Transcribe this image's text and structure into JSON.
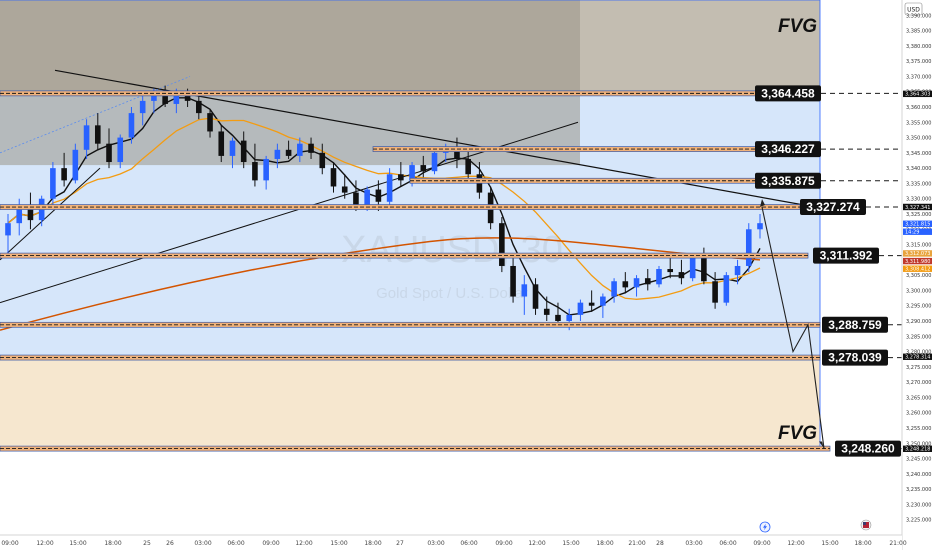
{
  "header": {
    "currency": "USD"
  },
  "watermark": {
    "symbol": "XAUUSD, 30",
    "description": "Gold Spot / U.S. Dollar"
  },
  "annotations": {
    "fvg_top": "FVG",
    "fvg_bottom": "FVG"
  },
  "chart_data": {
    "type": "candlestick",
    "title": "",
    "symbol": "XAUUSD",
    "timeframe": "30",
    "currency": "USD",
    "ylim": [
      3220,
      3395
    ],
    "y_ticks": [
      "3,390.000",
      "3,385.000",
      "3,380.000",
      "3,375.000",
      "3,370.000",
      "3,365.000",
      "3,360.000",
      "3,355.000",
      "3,350.000",
      "3,345.000",
      "3,340.000",
      "3,335.000",
      "3,330.000",
      "3,325.000",
      "3,320.000",
      "3,315.000",
      "3,310.000",
      "3,305.000",
      "3,300.000",
      "3,295.000",
      "3,290.000",
      "3,285.000",
      "3,280.000",
      "3,275.000",
      "3,270.000",
      "3,265.000",
      "3,260.000",
      "3,255.000",
      "3,250.000",
      "3,245.000",
      "3,240.000",
      "3,235.000",
      "3,230.000",
      "3,225.000"
    ],
    "x_ticks": [
      "09:00",
      "12:00",
      "15:00",
      "18:00",
      "25",
      "26",
      "03:00",
      "06:00",
      "09:00",
      "12:00",
      "15:00",
      "18:00",
      "27",
      "03:00",
      "06:00",
      "09:00",
      "12:00",
      "15:00",
      "18:00",
      "21:00",
      "28",
      "03:00",
      "06:00",
      "09:00",
      "12:00",
      "15:00",
      "18:00",
      "21:00"
    ],
    "levels": [
      {
        "label": "3,364.458",
        "value": 3364.458
      },
      {
        "label": "3,346.227",
        "value": 3346.227
      },
      {
        "label": "3,335.875",
        "value": 3335.875
      },
      {
        "label": "3,327.274",
        "value": 3327.274
      },
      {
        "label": "3,311.392",
        "value": 3311.392
      },
      {
        "label": "3,288.759",
        "value": 3288.759
      },
      {
        "label": "3,278.039",
        "value": 3278.039
      },
      {
        "label": "3,248.260",
        "value": 3248.26
      }
    ],
    "price_tags": [
      {
        "label": "3,364.303",
        "value": 3364.3,
        "color": "#111111"
      },
      {
        "label": "3,327.341",
        "value": 3327.3,
        "color": "#111111"
      },
      {
        "label": "3,321.815",
        "value": 3321.8,
        "color": "#2962ff"
      },
      {
        "label": "14:29",
        "value": 3319.2,
        "color": "#2962ff"
      },
      {
        "label": "3,312.073",
        "value": 3312.1,
        "color": "#e8a33c"
      },
      {
        "label": "3,311.980",
        "value": 3309.6,
        "color": "#c0392b"
      },
      {
        "label": "3,308.412",
        "value": 3307.1,
        "color": "#f39c12"
      },
      {
        "label": "3,278.314",
        "value": 3278.3,
        "color": "#111111"
      },
      {
        "label": "3,248.218",
        "value": 3248.2,
        "color": "#111111"
      }
    ],
    "zones": [
      {
        "name": "FVG",
        "from": 3364.5,
        "to": 3395
      },
      {
        "name": "FVG",
        "from": 3248.3,
        "to": 3278.0
      }
    ],
    "candles": [
      [
        3318,
        3325,
        3312,
        3322
      ],
      [
        3322,
        3330,
        3318,
        3328
      ],
      [
        3328,
        3332,
        3320,
        3323
      ],
      [
        3323,
        3331,
        3321,
        3330
      ],
      [
        3330,
        3342,
        3328,
        3340
      ],
      [
        3340,
        3345,
        3334,
        3336
      ],
      [
        3336,
        3348,
        3335,
        3346
      ],
      [
        3346,
        3356,
        3343,
        3354
      ],
      [
        3354,
        3358,
        3346,
        3348
      ],
      [
        3348,
        3353,
        3340,
        3342
      ],
      [
        3342,
        3351,
        3340,
        3350
      ],
      [
        3350,
        3360,
        3348,
        3358
      ],
      [
        3358,
        3364,
        3354,
        3362
      ],
      [
        3362,
        3366,
        3358,
        3364
      ],
      [
        3364,
        3367,
        3360,
        3361
      ],
      [
        3361,
        3366,
        3358,
        3365
      ],
      [
        3365,
        3366,
        3360,
        3362
      ],
      [
        3362,
        3364,
        3356,
        3358
      ],
      [
        3358,
        3359,
        3350,
        3352
      ],
      [
        3352,
        3354,
        3342,
        3344
      ],
      [
        3344,
        3350,
        3340,
        3349
      ],
      [
        3349,
        3352,
        3340,
        3342
      ],
      [
        3342,
        3348,
        3334,
        3336
      ],
      [
        3336,
        3344,
        3333,
        3343
      ],
      [
        3343,
        3348,
        3340,
        3346
      ],
      [
        3346,
        3349,
        3343,
        3344
      ],
      [
        3344,
        3350,
        3342,
        3348
      ],
      [
        3348,
        3350,
        3343,
        3345
      ],
      [
        3345,
        3348,
        3338,
        3340
      ],
      [
        3340,
        3342,
        3332,
        3334
      ],
      [
        3334,
        3338,
        3330,
        3332
      ],
      [
        3332,
        3336,
        3326,
        3328
      ],
      [
        3328,
        3334,
        3326,
        3333
      ],
      [
        3333,
        3336,
        3326,
        3329
      ],
      [
        3329,
        3340,
        3328,
        3338
      ],
      [
        3338,
        3342,
        3334,
        3336
      ],
      [
        3336,
        3342,
        3334,
        3341
      ],
      [
        3341,
        3344,
        3337,
        3339
      ],
      [
        3339,
        3346,
        3338,
        3345
      ],
      [
        3345,
        3348,
        3342,
        3346
      ],
      [
        3346,
        3350,
        3340,
        3343
      ],
      [
        3343,
        3347,
        3336,
        3338
      ],
      [
        3338,
        3342,
        3330,
        3332
      ],
      [
        3332,
        3334,
        3320,
        3322
      ],
      [
        3322,
        3324,
        3306,
        3308
      ],
      [
        3308,
        3312,
        3296,
        3298
      ],
      [
        3298,
        3305,
        3292,
        3302
      ],
      [
        3302,
        3304,
        3292,
        3294
      ],
      [
        3294,
        3298,
        3290,
        3292
      ],
      [
        3292,
        3296,
        3288,
        3290
      ],
      [
        3290,
        3294,
        3287,
        3292
      ],
      [
        3292,
        3297,
        3290,
        3296
      ],
      [
        3296,
        3300,
        3293,
        3295
      ],
      [
        3295,
        3299,
        3291,
        3298
      ],
      [
        3298,
        3304,
        3296,
        3303
      ],
      [
        3303,
        3306,
        3299,
        3301
      ],
      [
        3301,
        3305,
        3298,
        3304
      ],
      [
        3304,
        3307,
        3300,
        3302
      ],
      [
        3302,
        3308,
        3301,
        3307
      ],
      [
        3307,
        3311,
        3304,
        3306
      ],
      [
        3306,
        3310,
        3302,
        3304
      ],
      [
        3304,
        3312,
        3303,
        3311
      ],
      [
        3311,
        3314,
        3302,
        3303
      ],
      [
        3303,
        3306,
        3294,
        3296
      ],
      [
        3296,
        3306,
        3295,
        3305
      ],
      [
        3305,
        3310,
        3302,
        3308
      ],
      [
        3308,
        3322,
        3306,
        3320
      ],
      [
        3320,
        3325,
        3317,
        3322
      ]
    ],
    "forecast_path": [
      3327.3,
      3280,
      3288.8,
      3248.3
    ]
  }
}
